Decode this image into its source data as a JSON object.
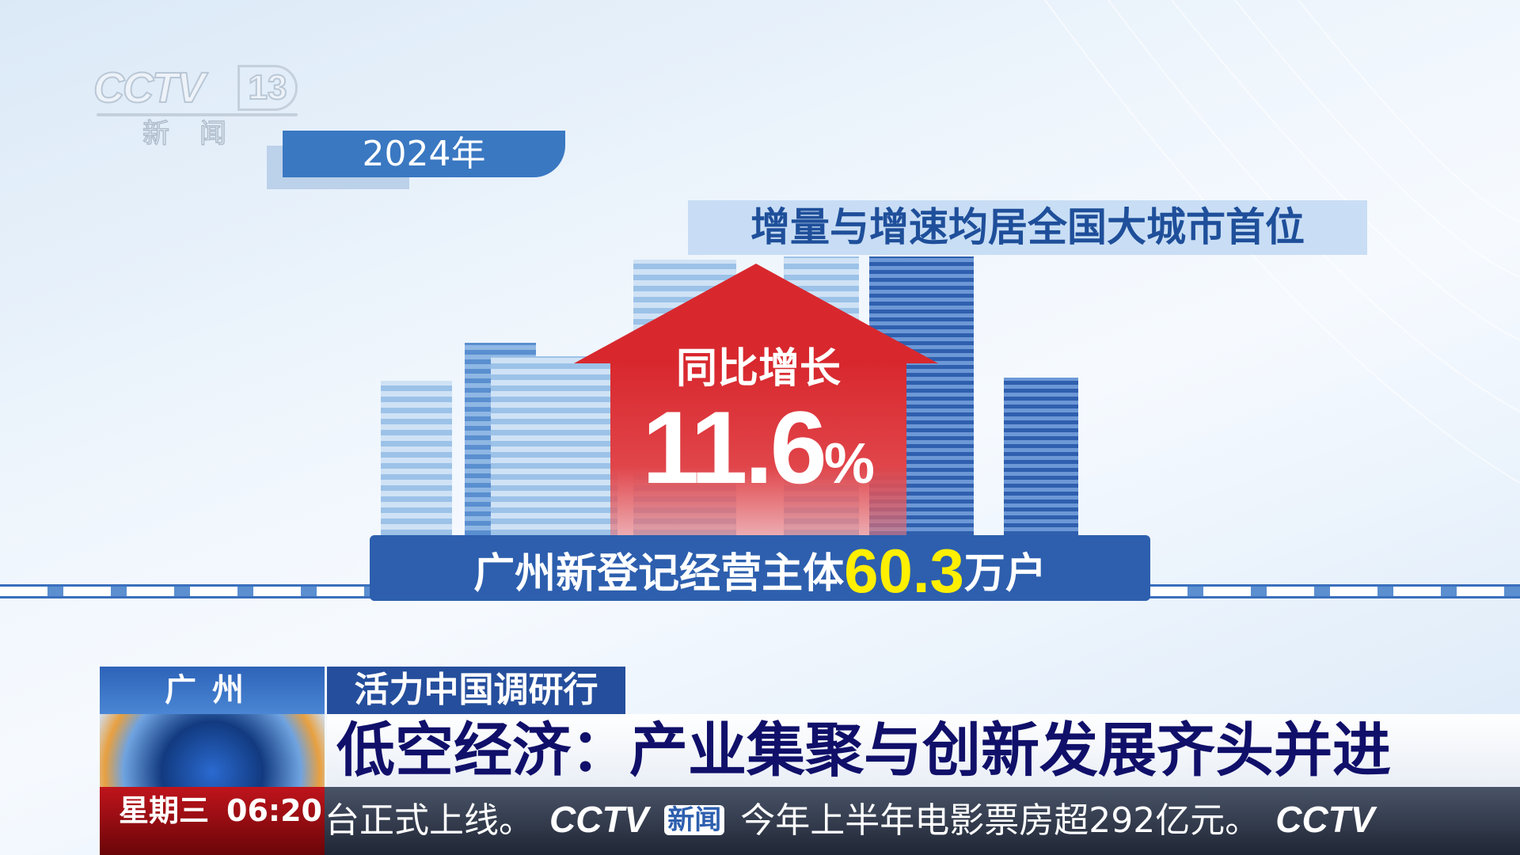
{
  "channel": {
    "logo": "CCTV",
    "number": "13",
    "sub": "新闻"
  },
  "year_tag": "2024年",
  "headline_box": "增量与增速均居全国大城市首位",
  "growth": {
    "label": "同比增长",
    "value": "11.6",
    "unit": "%"
  },
  "summary": {
    "prefix": "广州新登记经营主体",
    "value": "60.3",
    "suffix": "万户"
  },
  "lower_third": {
    "location": "广州",
    "program": "活力中国调研行",
    "headline": "低空经济：产业集聚与创新发展齐头并进"
  },
  "clock": {
    "weekday": "星期三",
    "time": "06:20"
  },
  "ticker": {
    "item1": "台正式上线。",
    "logo": "CCTV",
    "logo_sub": "新闻",
    "item2": "今年上半年电影票房超292亿元。"
  },
  "colors": {
    "accent_red": "#d8282e",
    "highlight_yellow": "#ffef00",
    "brand_blue": "#2d5fae"
  }
}
